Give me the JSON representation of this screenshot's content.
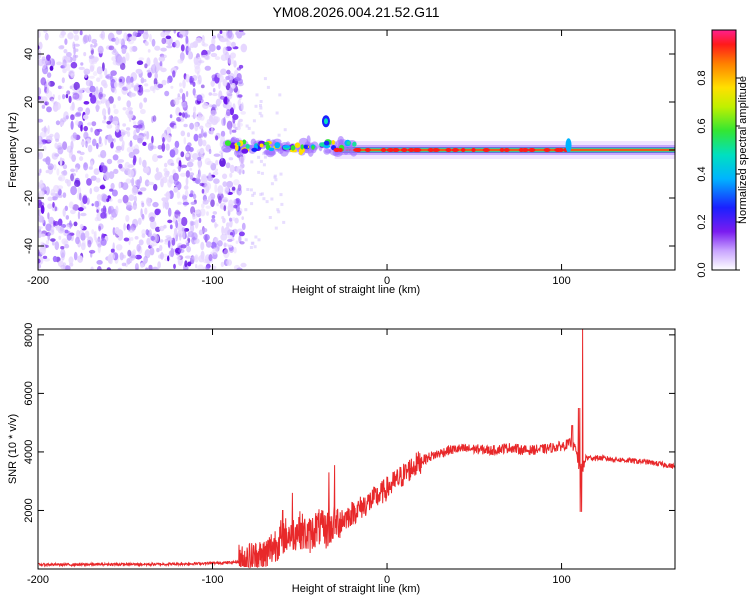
{
  "chart_data": [
    {
      "type": "heatmap",
      "title": "YM08.2026.004.21.52.G11",
      "xlabel": "Height of straight line (km)",
      "ylabel": "Frequency (Hz)",
      "xlim": [
        -200,
        165
      ],
      "ylim": [
        -50,
        50
      ],
      "xticks": [
        -200,
        -100,
        0,
        100
      ],
      "yticks": [
        -40,
        -20,
        0,
        20,
        40
      ],
      "colorbar": {
        "label": "Normalized spectral amplitude",
        "range": [
          0,
          1
        ],
        "ticks": [
          "0.0",
          "0.2",
          "0.4",
          "0.6",
          "0.8"
        ]
      },
      "regions": [
        {
          "name": "noise",
          "x": [
            -200,
            -82
          ],
          "freq": [
            -50,
            50
          ],
          "amplitude": 0.15
        },
        {
          "name": "transition",
          "x": [
            -92,
            -30
          ],
          "freq": [
            -5,
            12
          ],
          "amplitude": 0.4
        },
        {
          "name": "carrier",
          "x": [
            -30,
            165
          ],
          "freq": [
            -1,
            1
          ],
          "amplitude": 1.0
        }
      ]
    },
    {
      "type": "line",
      "xlabel": "Height of straight line (km)",
      "ylabel": "SNR (10 * v/v)",
      "xlim": [
        -200,
        165
      ],
      "ylim": [
        0,
        8200
      ],
      "xticks": [
        -200,
        -100,
        0,
        100
      ],
      "yticks": [
        2000,
        4000,
        6000,
        8000
      ],
      "color": "#e8282a",
      "series": [
        {
          "name": "SNR",
          "x": [
            -200,
            -180,
            -160,
            -140,
            -120,
            -100,
            -90,
            -80,
            -75,
            -70,
            -65,
            -60,
            -55,
            -50,
            -45,
            -40,
            -35,
            -30,
            -25,
            -20,
            -15,
            -10,
            -5,
            0,
            5,
            10,
            15,
            20,
            25,
            30,
            35,
            40,
            50,
            60,
            70,
            80,
            90,
            100,
            105,
            108,
            110,
            112,
            114,
            120,
            130,
            140,
            150,
            160,
            165
          ],
          "values": [
            150,
            150,
            160,
            160,
            170,
            200,
            220,
            280,
            350,
            450,
            800,
            1100,
            1200,
            1350,
            1100,
            1450,
            1300,
            1600,
            1700,
            1900,
            2100,
            2300,
            2500,
            2750,
            3000,
            3250,
            3500,
            3700,
            3850,
            3950,
            4050,
            4100,
            4100,
            4050,
            4150,
            4050,
            4100,
            4200,
            4300,
            4100,
            3500,
            3400,
            3800,
            3800,
            3750,
            3700,
            3650,
            3550,
            3500
          ]
        }
      ],
      "spikes": [
        {
          "x": 112,
          "value": 8200
        },
        {
          "x": 110,
          "value": 5500
        },
        {
          "x": 106,
          "value": 4900
        },
        {
          "x": 111,
          "value": 1950
        },
        {
          "x": -54,
          "value": 2600
        },
        {
          "x": -30,
          "value": 3550
        },
        {
          "x": -60,
          "value": 2000
        },
        {
          "x": -33,
          "value": 3300
        }
      ]
    }
  ]
}
